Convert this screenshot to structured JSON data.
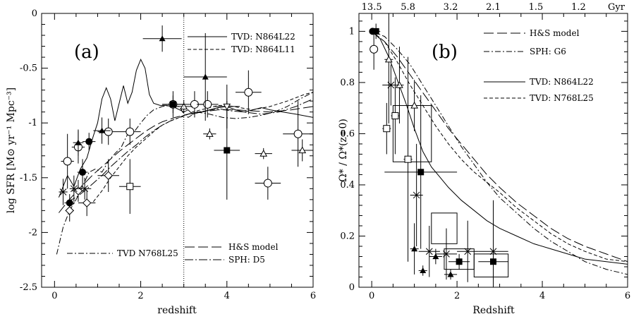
{
  "chart_data": [
    {
      "type": "line",
      "panel_label": "(a)",
      "xlabel": "redshift",
      "ylabel": "log SFR [M⊙ yr⁻¹ Mpc⁻³]",
      "xlim": [
        -0.3,
        6
      ],
      "ylim": [
        -2.5,
        0
      ],
      "xticks": [
        0,
        2,
        4,
        6
      ],
      "yticks": [
        0,
        -0.5,
        -1,
        -1.5,
        -2,
        -2.5
      ],
      "vline_x": 3,
      "legend_top": [
        "TVD: N864L22",
        "TVD: N864L11"
      ],
      "legend_bottom": [
        "H&S model",
        "SPH: D5"
      ],
      "legend_left": "TVD N768L25",
      "series": [
        {
          "name": "TVD: N864L22",
          "dash": "",
          "x": [
            0.1,
            0.3,
            0.45,
            0.6,
            0.75,
            0.9,
            1.0,
            1.1,
            1.2,
            1.3,
            1.4,
            1.5,
            1.6,
            1.7,
            1.8,
            1.9,
            2.0,
            2.1,
            2.2,
            2.3,
            2.45,
            2.6,
            2.8,
            3.0,
            3.1,
            3.2,
            3.4,
            3.6,
            3.8,
            4.0,
            4.2,
            4.4,
            4.6,
            4.8,
            5.0,
            5.3,
            5.6,
            6.0
          ],
          "y": [
            -1.68,
            -1.48,
            -1.58,
            -1.42,
            -1.32,
            -1.12,
            -1.0,
            -0.78,
            -0.68,
            -0.78,
            -0.98,
            -0.82,
            -0.66,
            -0.82,
            -0.72,
            -0.52,
            -0.42,
            -0.5,
            -0.74,
            -0.82,
            -0.84,
            -0.84,
            -0.86,
            -0.9,
            -0.88,
            -0.92,
            -0.9,
            -0.88,
            -0.86,
            -0.85,
            -0.88,
            -0.9,
            -0.88,
            -0.86,
            -0.88,
            -0.9,
            -0.92,
            -0.95
          ]
        },
        {
          "name": "TVD: N864L11",
          "dash": "5,3",
          "x": [
            0.9,
            1.1,
            1.3,
            1.5,
            1.7,
            1.9,
            2.1,
            2.3,
            2.5,
            2.7,
            2.9,
            3.0,
            3.2,
            3.4,
            3.6,
            3.8,
            4.0,
            4.3,
            4.6,
            5.0,
            5.4,
            5.8,
            6.0
          ],
          "y": [
            -1.72,
            -1.62,
            -1.5,
            -1.4,
            -1.3,
            -1.22,
            -1.15,
            -1.08,
            -1.02,
            -0.98,
            -0.95,
            -0.94,
            -0.9,
            -0.88,
            -0.86,
            -0.84,
            -0.84,
            -0.86,
            -0.88,
            -0.85,
            -0.8,
            -0.74,
            -0.72
          ]
        },
        {
          "name": "H&S model",
          "dash": "14,5",
          "x": [
            0.1,
            0.3,
            0.5,
            0.7,
            0.9,
            1.1,
            1.3,
            1.5,
            1.7,
            1.9,
            2.1,
            2.3,
            2.5,
            2.8,
            3.1,
            3.4,
            3.8,
            4.2,
            4.6,
            5.0,
            5.5,
            6.0
          ],
          "y": [
            -1.82,
            -1.72,
            -1.63,
            -1.55,
            -1.47,
            -1.4,
            -1.33,
            -1.26,
            -1.2,
            -1.14,
            -1.08,
            -1.03,
            -0.99,
            -0.95,
            -0.92,
            -0.9,
            -0.88,
            -0.88,
            -0.89,
            -0.9,
            -0.88,
            -0.85
          ]
        },
        {
          "name": "SPH: D5",
          "dash": "12,3,2,3",
          "x": [
            0.3,
            0.5,
            0.7,
            0.9,
            1.1,
            1.3,
            1.5,
            1.7,
            1.9,
            2.1,
            2.3,
            2.5,
            2.7,
            2.9,
            3.0,
            3.2,
            3.5,
            3.8,
            4.1,
            4.4,
            4.8,
            5.2,
            5.6,
            6.0
          ],
          "y": [
            -1.72,
            -1.68,
            -1.62,
            -1.55,
            -1.48,
            -1.4,
            -1.33,
            -1.26,
            -1.2,
            -1.13,
            -1.07,
            -1.02,
            -0.98,
            -0.95,
            -0.93,
            -0.91,
            -0.89,
            -0.87,
            -0.89,
            -0.9,
            -0.92,
            -0.9,
            -0.85,
            -0.78
          ]
        },
        {
          "name": "TVD N768L25",
          "dash": "8,3,2,3",
          "x": [
            0.05,
            0.2,
            0.35,
            0.5,
            0.65,
            0.8,
            0.95,
            1.1,
            1.25,
            1.4,
            1.55,
            1.7,
            1.85,
            2.0,
            2.15,
            2.3,
            2.5,
            2.7,
            2.9,
            3.0,
            3.1,
            3.3,
            3.6,
            3.9,
            4.2,
            4.5,
            4.8,
            5.1,
            5.4,
            5.7,
            6.0
          ],
          "y": [
            -2.2,
            -1.95,
            -1.8,
            -1.7,
            -1.58,
            -1.45,
            -1.42,
            -1.45,
            -1.35,
            -1.28,
            -1.22,
            -1.1,
            -1.08,
            -1.0,
            -0.93,
            -0.88,
            -0.85,
            -0.84,
            -0.85,
            -0.92,
            -0.95,
            -0.9,
            -0.92,
            -0.95,
            -0.96,
            -0.95,
            -0.93,
            -0.9,
            -0.85,
            -0.78,
            -0.72
          ]
        }
      ],
      "points": [
        {
          "m": "circle",
          "x": 0.3,
          "y": -1.35,
          "xe": 0.15,
          "ye": 0.25
        },
        {
          "m": "circle",
          "x": 0.55,
          "y": -1.22,
          "xe": 0.15,
          "ye": 0.15
        },
        {
          "m": "circle",
          "x": 1.25,
          "y": -1.08,
          "xe": 0.25,
          "ye": 0.12
        },
        {
          "m": "circle",
          "x": 1.75,
          "y": -1.08,
          "xe": 0.25,
          "ye": 0.12
        },
        {
          "m": "circle",
          "x": 2.75,
          "y": -0.83,
          "xe": 0.25,
          "ye": 0.12
        },
        {
          "m": "circle",
          "x": 3.25,
          "y": -0.83,
          "xe": 0.25,
          "ye": 0.12
        },
        {
          "m": "circle",
          "x": 3.55,
          "y": -0.83,
          "xe": 0.25,
          "ye": 0.12
        },
        {
          "m": "circle",
          "x": 4.5,
          "y": -0.72,
          "xe": 0.3,
          "ye": 0.2
        },
        {
          "m": "circle",
          "x": 4.95,
          "y": -1.55,
          "xe": 0.3,
          "ye": 0.15
        },
        {
          "m": "circle",
          "x": 5.65,
          "y": -1.1,
          "xe": 0.35,
          "ye": 0.3
        },
        {
          "m": "fcircle",
          "x": 0.35,
          "y": -1.73,
          "xe": 0.12,
          "ye": 0.08
        },
        {
          "m": "fcircle",
          "x": 0.65,
          "y": -1.45,
          "xe": 0.12,
          "ye": 0.12
        },
        {
          "m": "fcircle",
          "x": 0.8,
          "y": -1.17,
          "xe": 0.15,
          "ye": 0.08
        },
        {
          "m": "diamond",
          "x": 0.35,
          "y": -1.8,
          "xe": 0.1,
          "ye": 0.1
        },
        {
          "m": "diamond",
          "x": 0.55,
          "y": -1.62,
          "xe": 0.15,
          "ye": 0.1
        },
        {
          "m": "diamond",
          "x": 0.75,
          "y": -1.73,
          "xe": 0.2,
          "ye": 0.12
        },
        {
          "m": "diamond",
          "x": 1.25,
          "y": -1.48,
          "xe": 0.25,
          "ye": 0.15
        },
        {
          "m": "cross",
          "x": 0.2,
          "y": -1.63,
          "xe": 0.1,
          "ye": 0.12
        },
        {
          "m": "cross",
          "x": 0.45,
          "y": -1.6,
          "xe": 0.1,
          "ye": 0.12
        },
        {
          "m": "cross",
          "x": 0.7,
          "y": -1.6,
          "xe": 0.15,
          "ye": 0.1
        },
        {
          "m": "square",
          "x": 1.75,
          "y": -1.58,
          "xe": 0.25,
          "ye": 0.25
        },
        {
          "m": "fsquare",
          "x": 2.75,
          "y": -0.83,
          "xe": 0.25,
          "ye": 0.08
        },
        {
          "m": "fsquare",
          "x": 4.0,
          "y": -1.25,
          "xe": 0.3,
          "ye": 0.45
        },
        {
          "m": "ftriangle",
          "x": 0.55,
          "y": -1.18,
          "xe": 0.12,
          "ye": 0.12
        },
        {
          "m": "ftriangle",
          "x": 1.1,
          "y": -1.07,
          "xe": 0.2,
          "ye": 0.12
        },
        {
          "m": "ftriangle",
          "x": 2.5,
          "y": -0.23,
          "xe": 0.45,
          "ye": 0.12
        },
        {
          "m": "ftriangle",
          "x": 3.5,
          "y": -0.58,
          "xe": 0.5,
          "ye": 0.4
        },
        {
          "m": "triangle",
          "x": 3.0,
          "y": -0.85,
          "xe": 0.2,
          "ye": 0.06
        },
        {
          "m": "triangle",
          "x": 3.6,
          "y": -1.1,
          "xe": 0.15,
          "ye": 0.05
        },
        {
          "m": "triangle",
          "x": 4.85,
          "y": -1.28,
          "xe": 0.2,
          "ye": 0.05
        },
        {
          "m": "triangle",
          "x": 5.75,
          "y": -1.25,
          "xe": 0.25,
          "ye": 0.1
        },
        {
          "m": "itriangle",
          "x": 4.0,
          "y": -0.85,
          "xe": 0.3,
          "ye": 0.2
        }
      ]
    },
    {
      "type": "line",
      "panel_label": "(b)",
      "xlabel": "Redshift",
      "ylabel": "Ω* / Ω*(z=0)",
      "xlim": [
        -0.3,
        6
      ],
      "ylim": [
        0,
        1.07
      ],
      "xticks": [
        0,
        2,
        4,
        6
      ],
      "yticks": [
        0,
        0.2,
        0.4,
        0.6,
        0.8,
        1
      ],
      "top_axis_label": "Gyr",
      "top_ticks": [
        {
          "z": 0,
          "label": "13.5"
        },
        {
          "z": 0.85,
          "label": "5.8"
        },
        {
          "z": 1.85,
          "label": "3.2"
        },
        {
          "z": 2.85,
          "label": "2.1"
        },
        {
          "z": 3.85,
          "label": "1.5"
        },
        {
          "z": 4.85,
          "label": "1.2"
        }
      ],
      "legend": [
        "H&S model",
        "SPH: G6",
        "TVD: N864L22",
        "TVD: N768L25"
      ],
      "series": [
        {
          "name": "H&S model",
          "dash": "14,5",
          "x": [
            0,
            0.3,
            0.6,
            0.9,
            1.2,
            1.5,
            1.8,
            2.1,
            2.4,
            2.7,
            3.0,
            3.4,
            3.8,
            4.2,
            4.6,
            5.0,
            5.5,
            6.0
          ],
          "y": [
            1.0,
            0.96,
            0.9,
            0.83,
            0.76,
            0.69,
            0.62,
            0.56,
            0.5,
            0.44,
            0.39,
            0.33,
            0.28,
            0.23,
            0.19,
            0.16,
            0.13,
            0.1
          ]
        },
        {
          "name": "SPH: G6",
          "dash": "8,3,2,3",
          "x": [
            0,
            0.3,
            0.6,
            0.9,
            1.2,
            1.5,
            1.8,
            2.1,
            2.4,
            2.7,
            3.0,
            3.4,
            3.8,
            4.2,
            4.6,
            5.0,
            5.5,
            6.0
          ],
          "y": [
            1.0,
            0.98,
            0.93,
            0.87,
            0.79,
            0.71,
            0.63,
            0.55,
            0.48,
            0.41,
            0.35,
            0.29,
            0.23,
            0.18,
            0.14,
            0.1,
            0.07,
            0.05
          ]
        },
        {
          "name": "TVD: N864L22",
          "dash": "",
          "x": [
            0,
            0.2,
            0.4,
            0.6,
            0.8,
            1.0,
            1.2,
            1.4,
            1.6,
            1.8,
            2.1,
            2.4,
            2.7,
            3.0,
            3.4,
            3.8,
            4.2,
            4.6,
            5.0,
            5.5,
            6.0
          ],
          "y": [
            1.0,
            0.97,
            0.9,
            0.81,
            0.72,
            0.62,
            0.53,
            0.47,
            0.43,
            0.39,
            0.34,
            0.3,
            0.26,
            0.23,
            0.2,
            0.17,
            0.15,
            0.13,
            0.11,
            0.1,
            0.09
          ]
        },
        {
          "name": "TVD: N768L25",
          "dash": "5,3",
          "x": [
            0,
            0.3,
            0.6,
            0.9,
            1.2,
            1.5,
            1.8,
            2.1,
            2.4,
            2.7,
            3.0,
            3.4,
            3.8,
            4.2,
            4.6,
            5.0,
            5.5,
            6.0
          ],
          "y": [
            1.0,
            0.96,
            0.88,
            0.79,
            0.71,
            0.63,
            0.56,
            0.5,
            0.45,
            0.41,
            0.37,
            0.31,
            0.26,
            0.21,
            0.17,
            0.14,
            0.11,
            0.1
          ]
        }
      ],
      "points": [
        {
          "m": "fcircle",
          "x": 0.02,
          "y": 1.0,
          "xe": 0,
          "ye": 0
        },
        {
          "m": "fsquare",
          "x": 0.1,
          "y": 1.0,
          "xe": 0.1,
          "ye": 0.03
        },
        {
          "m": "circle",
          "x": 0.05,
          "y": 0.93,
          "xe": 0.05,
          "ye": 0.08
        },
        {
          "m": "square",
          "x": 0.35,
          "y": 0.62,
          "xe": 0.1,
          "ye": 0.1
        },
        {
          "m": "square",
          "x": 0.55,
          "y": 0.67,
          "xe": 0.1,
          "ye": 0.15
        },
        {
          "m": "square",
          "x": 0.85,
          "y": 0.5,
          "xe": 0.1,
          "ye": 0.4
        },
        {
          "m": "triangle",
          "x": 0.4,
          "y": 0.89,
          "xe": 0.1,
          "ye": 0.25
        },
        {
          "m": "triangle",
          "x": 0.65,
          "y": 0.79,
          "xe": 0.1,
          "ye": 0.15
        },
        {
          "m": "triangle",
          "x": 1.0,
          "y": 0.71,
          "xe": 0.15,
          "ye": 0.1
        },
        {
          "m": "cross",
          "x": 0.45,
          "y": 0.79,
          "xe": 0.2,
          "ye": 0.08
        },
        {
          "m": "cross",
          "x": 1.05,
          "y": 0.36,
          "xe": 0.15,
          "ye": 0.2
        },
        {
          "m": "cross",
          "x": 1.35,
          "y": 0.14,
          "xe": 0.25,
          "ye": 0.1
        },
        {
          "m": "cross",
          "x": 1.75,
          "y": 0.13,
          "xe": 0.25,
          "ye": 0.1
        },
        {
          "m": "cross",
          "x": 2.25,
          "y": 0.14,
          "xe": 0.25,
          "ye": 0.12
        },
        {
          "m": "cross",
          "x": 2.85,
          "y": 0.14,
          "xe": 0.35,
          "ye": 0.2
        },
        {
          "m": "fsquare",
          "x": 1.15,
          "y": 0.45,
          "xe": 0.85,
          "ye": 0.3
        },
        {
          "m": "fsquare",
          "x": 2.05,
          "y": 0.1,
          "xe": 0.25,
          "ye": 0.03
        },
        {
          "m": "fsquare",
          "x": 2.85,
          "y": 0.1,
          "xe": 0.35,
          "ye": 0.03
        },
        {
          "m": "ftriangle",
          "x": 1.0,
          "y": 0.15,
          "xe": 0.1,
          "ye": 0.1
        },
        {
          "m": "ftriangle",
          "x": 1.2,
          "y": 0.065,
          "xe": 0.1,
          "ye": 0.02
        },
        {
          "m": "ftriangle",
          "x": 1.5,
          "y": 0.12,
          "xe": 0.15,
          "ye": 0.03
        },
        {
          "m": "ftriangle",
          "x": 1.85,
          "y": 0.05,
          "xe": 0.15,
          "ye": 0.02
        }
      ],
      "boxes": [
        {
          "x0": 0.5,
          "x1": 1.4,
          "y0": 0.49,
          "y1": 0.71
        },
        {
          "x0": 1.4,
          "x1": 2.0,
          "y0": 0.17,
          "y1": 0.29
        },
        {
          "x0": 1.7,
          "x1": 2.4,
          "y0": 0.07,
          "y1": 0.15
        },
        {
          "x0": 2.4,
          "x1": 3.2,
          "y0": 0.04,
          "y1": 0.13
        }
      ]
    }
  ]
}
